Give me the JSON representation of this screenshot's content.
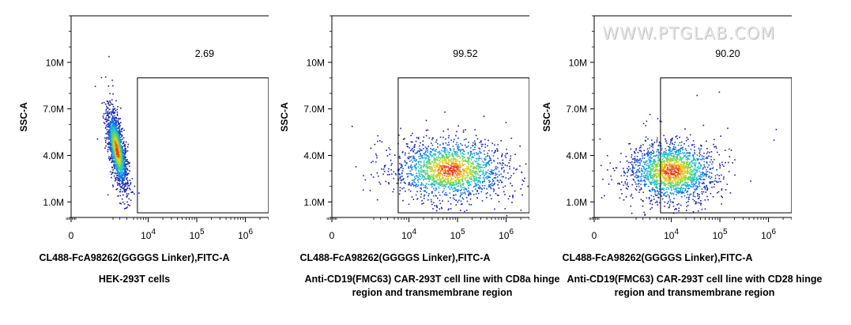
{
  "watermark": "WWW.PTGLAB.COM",
  "chart_data": [
    {
      "type": "scatter",
      "title": "HEK-293T cells",
      "xlabel": "CL488-FcA98262(GGGGS Linker),FITC-A",
      "ylabel": "SSC-A",
      "x_scale": "biexponential",
      "x_tick_labels": [
        "0",
        "10^4",
        "10^5",
        "10^6"
      ],
      "y_tick_labels": [
        "1.0M",
        "4.0M",
        "7.0M",
        "10M"
      ],
      "y_ticks": [
        1000000,
        4000000,
        7000000,
        10000000
      ],
      "ylim": [
        0,
        13000000
      ],
      "gate": {
        "x_range": [
          6000,
          3000000
        ],
        "y_range": [
          300000,
          9000000
        ],
        "percent": "2.69"
      },
      "population": {
        "x_center": 2500,
        "x_spread": [
          1200,
          5000
        ],
        "y_center": 4400000,
        "y_spread": [
          2300000,
          7000000
        ],
        "shape": "diagonal ellipse"
      },
      "grid": false
    },
    {
      "type": "scatter",
      "title": "Anti-CD19(FMC63) CAR-293T cell line with CD8a hinge region and transmembrane region",
      "xlabel": "CL488-FcA98262(GGGGS Linker),FITC-A",
      "ylabel": "SSC-A",
      "x_scale": "biexponential",
      "x_tick_labels": [
        "0",
        "10^4",
        "10^5",
        "10^6"
      ],
      "y_tick_labels": [
        "1.0M",
        "4.0M",
        "7.0M",
        "10M"
      ],
      "y_ticks": [
        1000000,
        4000000,
        7000000,
        10000000
      ],
      "ylim": [
        0,
        13000000
      ],
      "gate": {
        "x_range": [
          6000,
          3000000
        ],
        "y_range": [
          300000,
          9000000
        ],
        "percent": "99.52"
      },
      "population": {
        "x_center": 70000,
        "x_spread": [
          5000,
          1200000
        ],
        "y_center": 3100000,
        "y_spread": [
          1500000,
          5500000
        ],
        "shape": "wide ellipse"
      },
      "grid": false
    },
    {
      "type": "scatter",
      "title": "Anti-CD19(FMC63) CAR-293T cell line with CD28 hinge region and transmembrane region",
      "xlabel": "CL488-FcA98262(GGGGS Linker),FITC-A",
      "ylabel": "SSC-A",
      "x_scale": "biexponential",
      "x_tick_labels": [
        "0",
        "10^4",
        "10^5",
        "10^6"
      ],
      "y_tick_labels": [
        "1.0M",
        "4.0M",
        "7.0M",
        "10M"
      ],
      "y_ticks": [
        1000000,
        4000000,
        7000000,
        10000000
      ],
      "ylim": [
        0,
        13000000
      ],
      "gate": {
        "x_range": [
          6000,
          3000000
        ],
        "y_range": [
          300000,
          9000000
        ],
        "percent": "90.20"
      },
      "population": {
        "x_center": 10000,
        "x_spread": [
          2500,
          150000
        ],
        "y_center": 3000000,
        "y_spread": [
          1500000,
          5500000
        ],
        "shape": "ellipse"
      },
      "grid": false
    }
  ]
}
